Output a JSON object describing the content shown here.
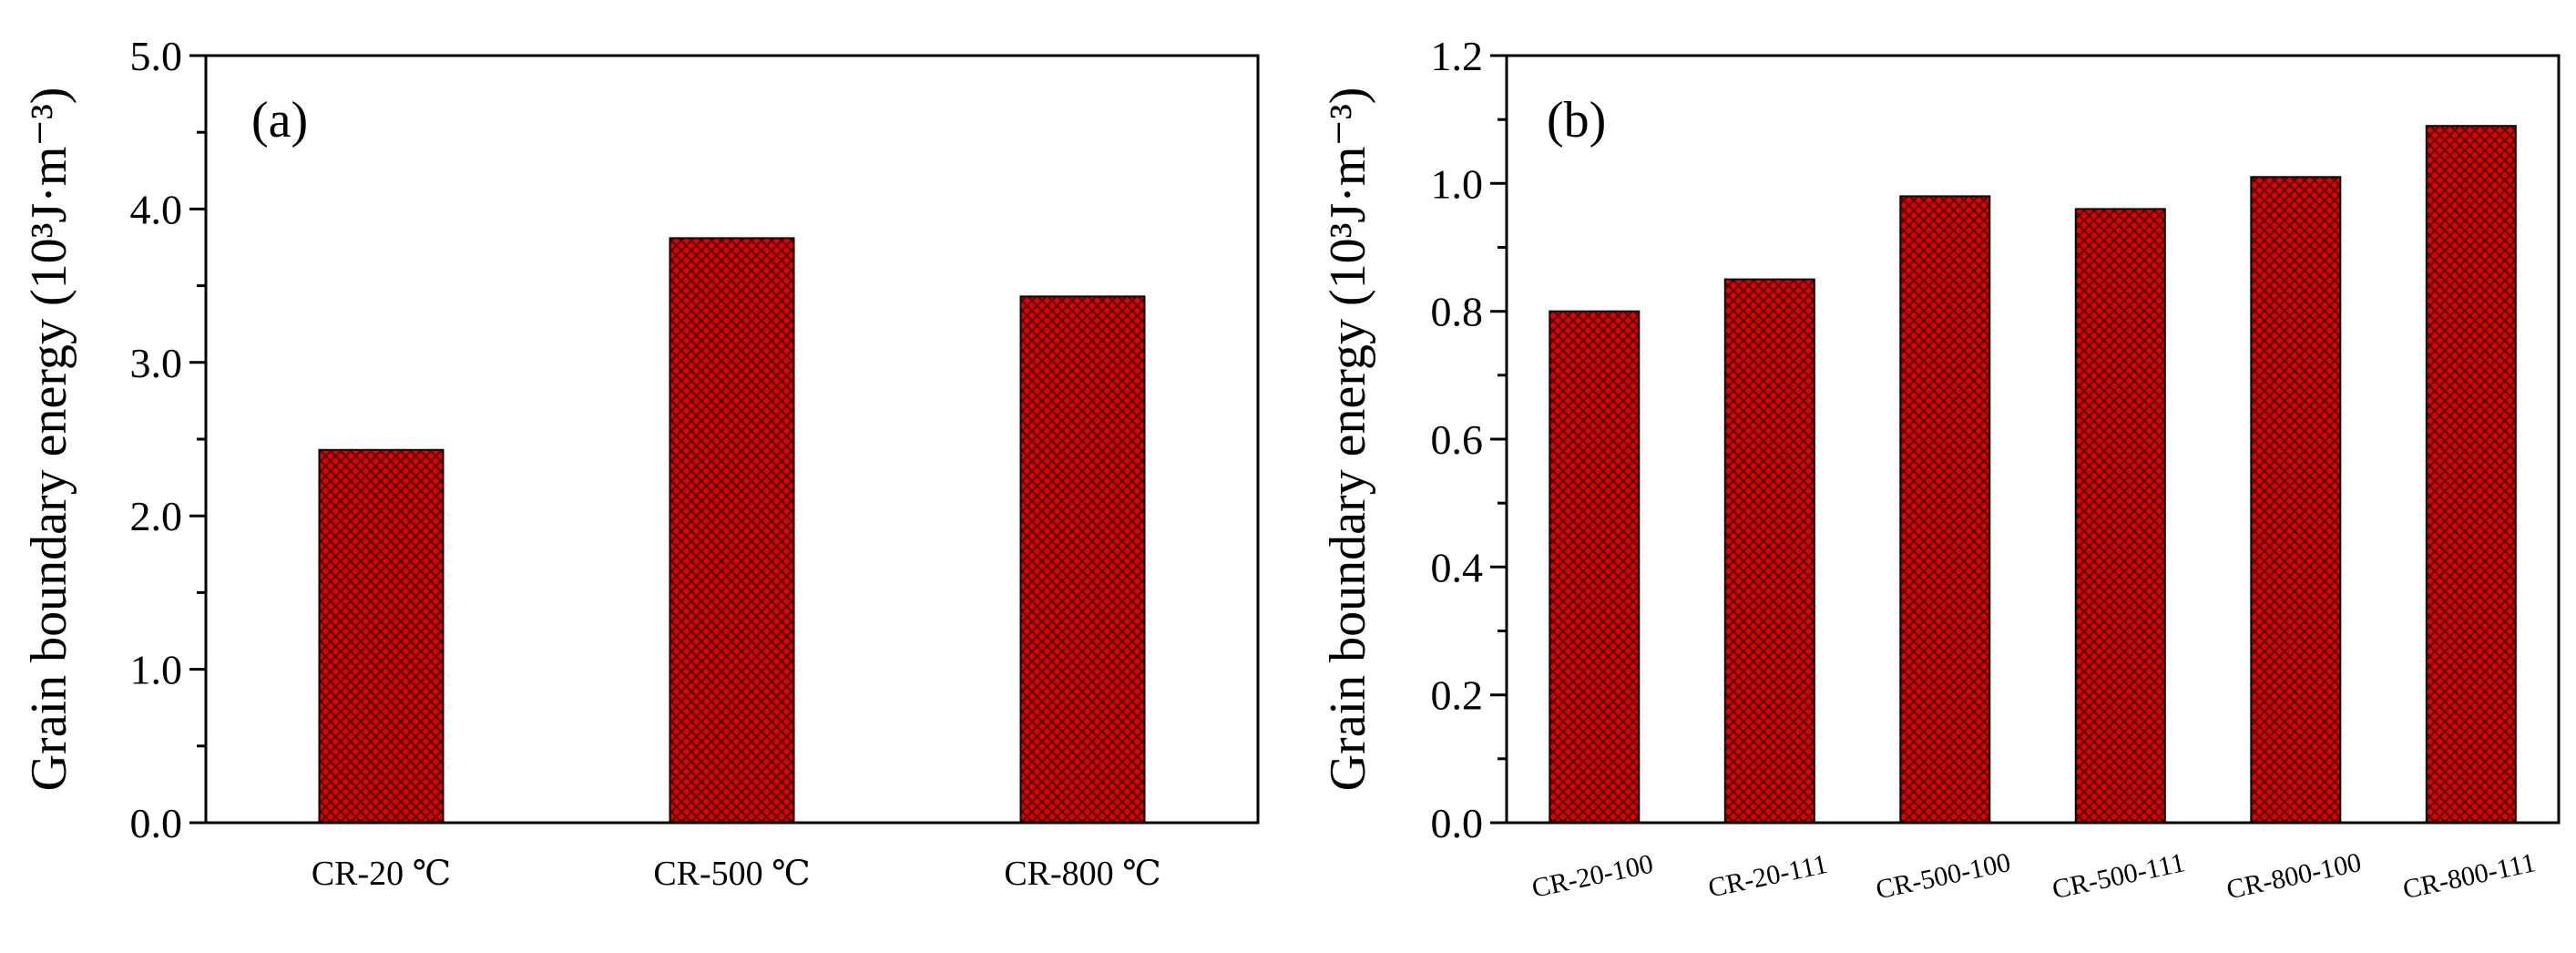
{
  "colors": {
    "bar_fill": "#e00000",
    "bar_hatch": "#5a0000",
    "axis": "#000000"
  },
  "chart_data": [
    {
      "type": "bar",
      "panel_label": "(a)",
      "title": "",
      "xlabel": "",
      "ylabel": "Grain boundary energy (10³J·m⁻³)",
      "ylim": [
        0,
        5
      ],
      "yticks": [
        0,
        1,
        2,
        3,
        4,
        5
      ],
      "ytick_labels": [
        "0.0",
        "1.0",
        "2.0",
        "3.0",
        "4.0",
        "5.0"
      ],
      "categories": [
        "CR-20 ℃",
        "CR-500 ℃",
        "CR-800 ℃"
      ],
      "values": [
        2.43,
        3.81,
        3.43
      ]
    },
    {
      "type": "bar",
      "panel_label": "(b)",
      "title": "",
      "xlabel": "",
      "ylabel": "Grain boundary energy (10³J·m⁻³)",
      "ylim": [
        0,
        1.2
      ],
      "yticks": [
        0,
        0.2,
        0.4,
        0.6,
        0.8,
        1.0,
        1.2
      ],
      "ytick_labels": [
        "0.0",
        "0.2",
        "0.4",
        "0.6",
        "0.8",
        "1.0",
        "1.2"
      ],
      "categories": [
        "CR-20-100",
        "CR-20-111",
        "CR-500-100",
        "CR-500-111",
        "CR-800-100",
        "CR-800-111"
      ],
      "values": [
        0.8,
        0.85,
        0.98,
        0.96,
        1.01,
        1.09
      ]
    }
  ]
}
